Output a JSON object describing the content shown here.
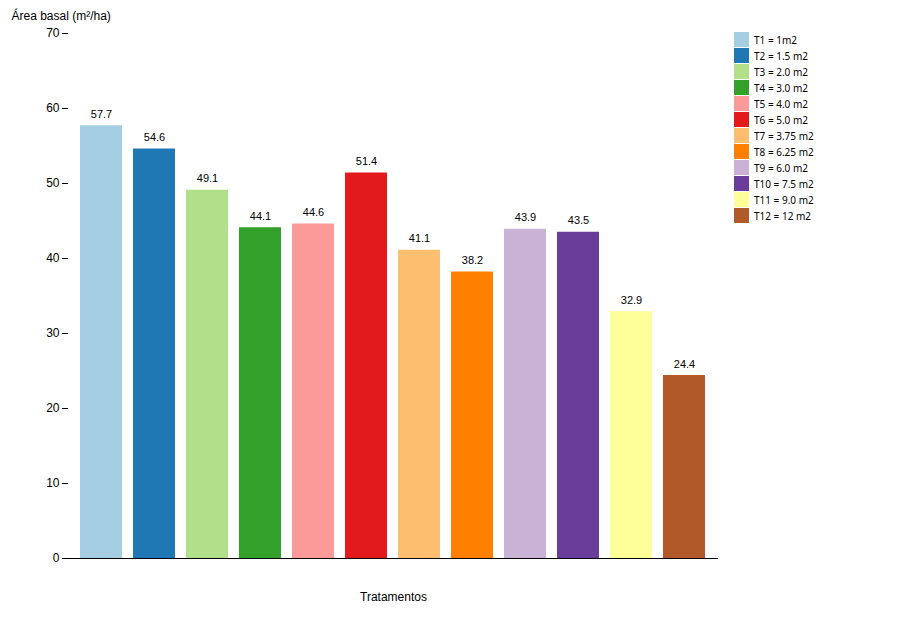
{
  "chart_data": {
    "type": "bar",
    "categories": [
      "T1 = 1m2",
      "T2 = 1.5 m2",
      "T3 = 2.0 m2",
      "T4 = 3.0 m2",
      "T5 = 4.0 m2",
      "T6 = 5.0 m2",
      "T7 = 3.75 m2",
      "T8 = 6.25 m2",
      "T9 = 6.0 m2",
      "T10 = 7.5 m2",
      "T11 = 9.0 m2",
      "T12 = 12 m2"
    ],
    "values": [
      57.7,
      54.6,
      49.1,
      44.1,
      44.6,
      51.4,
      41.1,
      38.2,
      43.9,
      43.5,
      32.9,
      24.4
    ],
    "xlabel": "Tratamentos",
    "ylabel": "Área basal (m²/ha)",
    "ylim": [
      0,
      70
    ],
    "yticks": [
      0,
      10,
      20,
      30,
      40,
      50,
      60,
      70
    ],
    "grid": false,
    "legend": "upper right",
    "data_labels": true,
    "tick_labels": "y"
  }
}
